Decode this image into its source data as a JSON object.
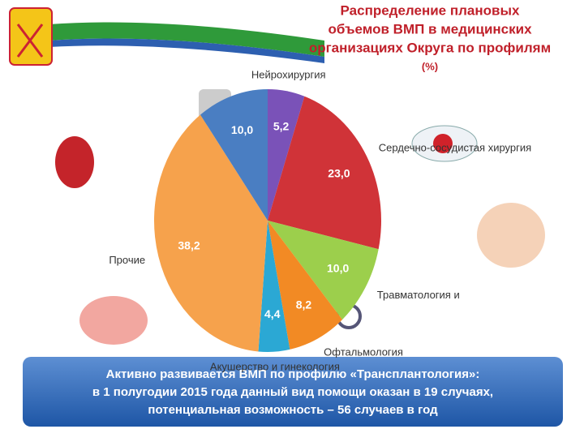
{
  "chart_data": {
    "type": "pie",
    "title_lines": [
      "Распределение плановых",
      "объемов ВМП в медицинских",
      "организациях Округа по профилям"
    ],
    "subtitle": "(%)",
    "categories": [
      "Нейрохирургия",
      "Сердечно-сосудистая хирургия",
      "Травматология и",
      "Офтальмология",
      "Акушерство и гинекология",
      "Прочие",
      null
    ],
    "values": [
      5.2,
      23.0,
      10.0,
      8.2,
      4.4,
      38.2,
      10.0
    ],
    "value_labels": [
      "5,2",
      "23,0",
      "10,0",
      "8,2",
      "4,4",
      "38,2",
      "10,0"
    ],
    "colors": [
      "#7a52b8",
      "#d03338",
      "#9ccf4c",
      "#f28a24",
      "#2ba8d4",
      "#f6a24c",
      "#4a7ec2"
    ]
  },
  "banner": {
    "lines": [
      "Активно развивается ВМП  по профилю «Трансплантология»:",
      "в 1 полугодии 2015 года данный вид помощи оказан в 19 случаях,",
      "потенциальная возможность – 56 случаев в год"
    ]
  }
}
